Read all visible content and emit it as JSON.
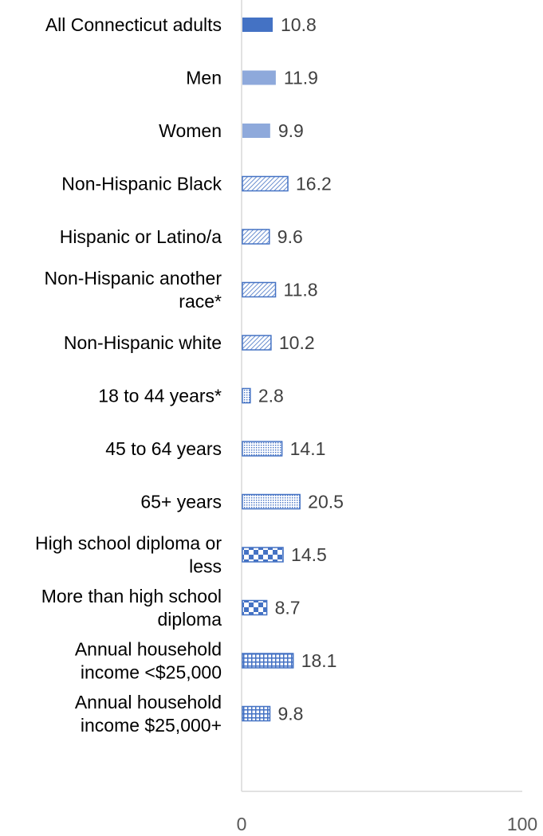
{
  "chart_data": {
    "type": "bar",
    "orientation": "horizontal",
    "title": "",
    "xlabel": "",
    "ylabel": "",
    "xlim": [
      0,
      100
    ],
    "x_ticks": [
      0,
      100
    ],
    "grid": false,
    "legend": "none",
    "data_labels": true,
    "categories": [
      "All Connecticut adults",
      "Men",
      "Women",
      "Non-Hispanic Black",
      "Hispanic or Latino/a",
      "Non-Hispanic another race*",
      "Non-Hispanic white",
      "18 to 44 years*",
      "45 to 64 years",
      "65+ years",
      "High school diploma or less",
      "More than high school diploma",
      "Annual household income <$25,000",
      "Annual household income $25,000+"
    ],
    "label_lines": [
      [
        "All Connecticut adults"
      ],
      [
        "Men"
      ],
      [
        "Women"
      ],
      [
        "Non-Hispanic Black"
      ],
      [
        "Hispanic or Latino/a"
      ],
      [
        "Non-Hispanic another",
        "race*"
      ],
      [
        "Non-Hispanic white"
      ],
      [
        "18 to 44 years*"
      ],
      [
        "45 to 64 years"
      ],
      [
        "65+ years"
      ],
      [
        "High school diploma or",
        "less"
      ],
      [
        "More than high school",
        "diploma"
      ],
      [
        "Annual household",
        "income <$25,000"
      ],
      [
        "Annual household",
        "income $25,000+"
      ]
    ],
    "values": [
      10.8,
      11.9,
      9.9,
      16.2,
      9.6,
      11.8,
      10.2,
      2.8,
      14.1,
      20.5,
      14.5,
      8.7,
      18.1,
      9.8
    ],
    "value_labels": [
      "10.8",
      "11.9",
      "9.9",
      "16.2",
      "9.6",
      "11.8",
      "10.2",
      "2.8",
      "14.1",
      "20.5",
      "14.5",
      "8.7",
      "18.1",
      "9.8"
    ],
    "fills": [
      "solid-dark",
      "solid-light",
      "solid-light",
      "diagonal",
      "diagonal",
      "diagonal",
      "diagonal",
      "dots",
      "dots",
      "dots",
      "checker",
      "checker",
      "grid",
      "grid"
    ],
    "colors": {
      "solid_dark": "#4472C4",
      "solid_light": "#8EA9DB",
      "pattern": "#4472C4",
      "axis": "#D9D9D9"
    }
  }
}
